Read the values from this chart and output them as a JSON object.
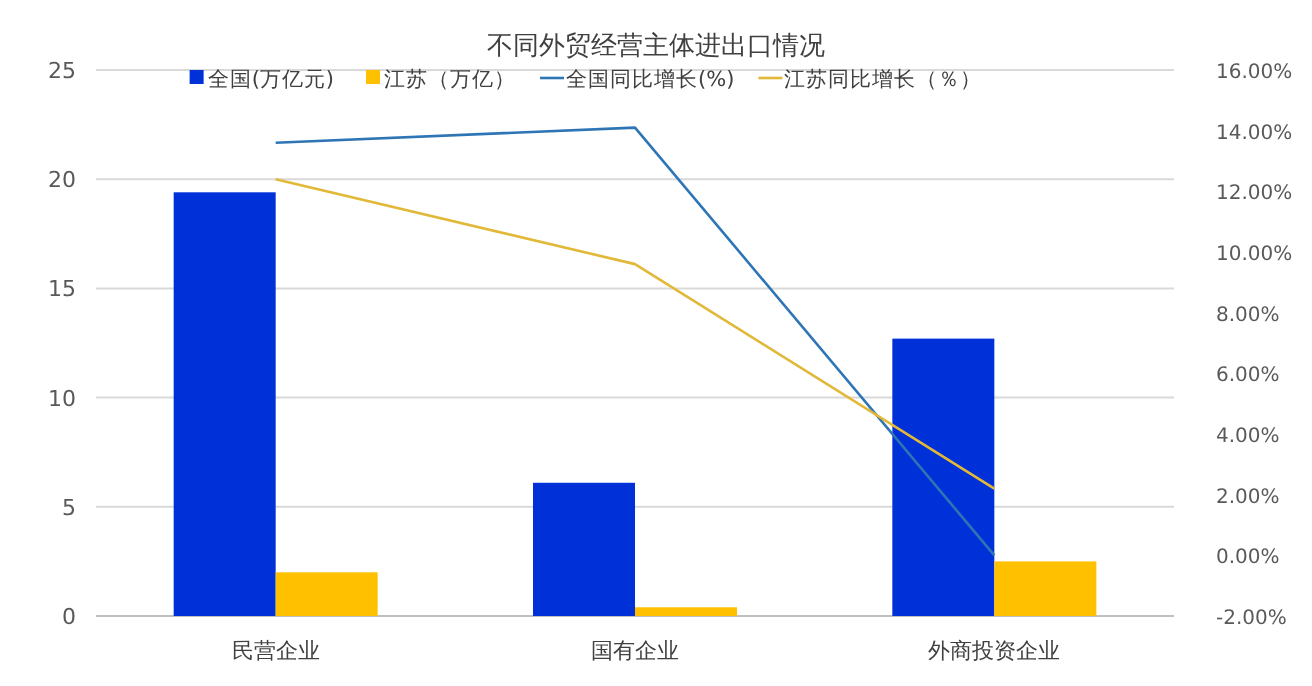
{
  "chart_data": {
    "type": "bar",
    "title": "不同外贸经营主体进出口情况",
    "categories": [
      "民营企业",
      "国有企业",
      "外商投资企业"
    ],
    "series": [
      {
        "name": "全国(万亿元)",
        "color": "#0030d8",
        "values": [
          19.4,
          6.1,
          12.7
        ]
      },
      {
        "name": "江苏（万亿）",
        "color": "#ffc000",
        "values": [
          2.0,
          0.4,
          2.5
        ]
      },
      {
        "name": "全国同比增长(%)",
        "type": "line",
        "axis": "y2",
        "color": "#2e75b6",
        "values": [
          13.6,
          14.1,
          0
        ]
      },
      {
        "name": "江苏同比增长（％）",
        "type": "line",
        "axis": "y2",
        "color": "#e2b838",
        "values": [
          12.4,
          9.6,
          2.2
        ]
      }
    ],
    "ylim": [
      0,
      25
    ],
    "yticks": [
      0,
      5,
      10,
      15,
      20,
      25
    ],
    "y2lim": [
      -2,
      16
    ],
    "y2ticks": [
      {
        "value": -2,
        "label": "-2.00%"
      },
      {
        "value": 0,
        "label": "0.00%"
      },
      {
        "value": 2,
        "label": "2.00%"
      },
      {
        "value": 4,
        "label": "4.00%"
      },
      {
        "value": 6,
        "label": "6.00%"
      },
      {
        "value": 8,
        "label": "8.00%"
      },
      {
        "value": 10,
        "label": "10.00%"
      },
      {
        "value": 12,
        "label": "12.00%"
      },
      {
        "value": 14,
        "label": "14.00%"
      },
      {
        "value": 16,
        "label": "16.00%"
      }
    ],
    "grid": "y",
    "legend": "top"
  }
}
